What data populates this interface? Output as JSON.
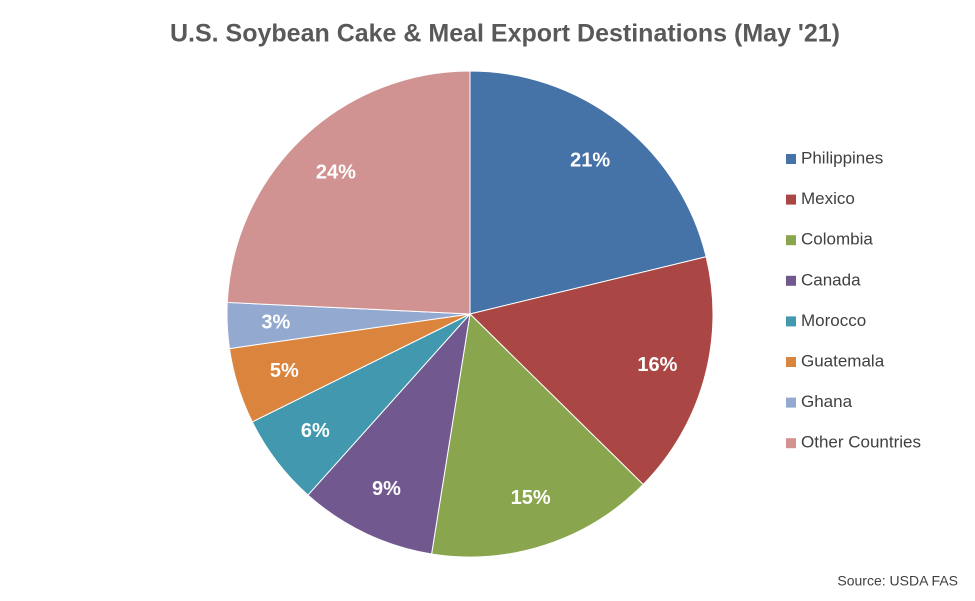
{
  "chart_data": {
    "type": "pie",
    "title": "U.S. Soybean Cake & Meal Export Destinations (May '21)",
    "categories": [
      "Philippines",
      "Mexico",
      "Colombia",
      "Canada",
      "Morocco",
      "Guatemala",
      "Ghana",
      "Other Countries"
    ],
    "values": [
      21,
      16,
      15,
      9,
      6,
      5,
      3,
      24
    ],
    "value_labels": [
      "21%",
      "16%",
      "15%",
      "9%",
      "6%",
      "5%",
      "3%",
      "24%"
    ],
    "colors": [
      "#4572a7",
      "#aa4643",
      "#89a54e",
      "#71588f",
      "#4198af",
      "#db843d",
      "#93a9cf",
      "#d19392"
    ],
    "legend": "right",
    "source": "Source: USDA FAS"
  }
}
